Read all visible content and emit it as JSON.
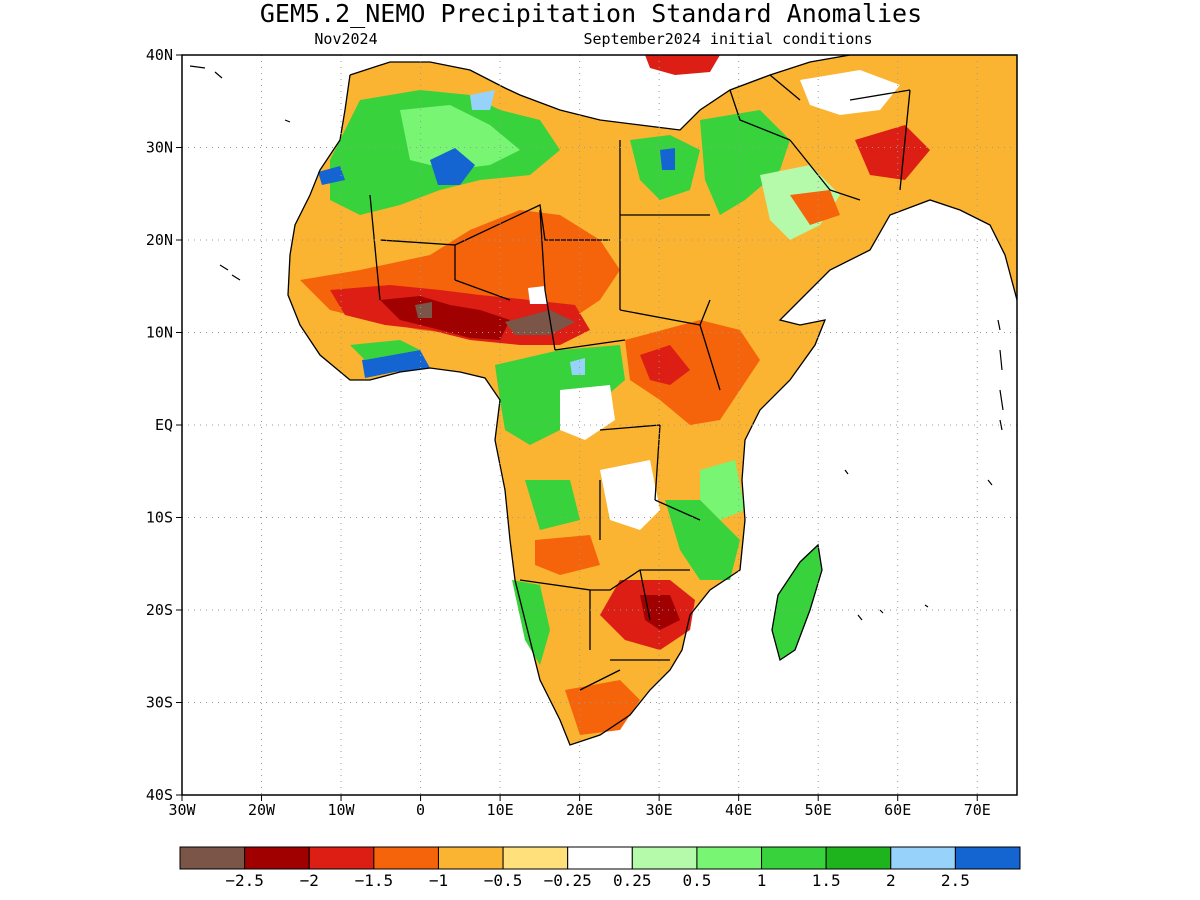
{
  "title": "GEM5.2_NEMO Precipitation Standard Anomalies",
  "subtitle_left": "Nov2024",
  "subtitle_right": "September2024 initial conditions",
  "map": {
    "lon_range": [
      -30,
      75
    ],
    "lat_range": [
      -40,
      40
    ],
    "lat_ticks": [
      {
        "value": 40,
        "label": "40N"
      },
      {
        "value": 30,
        "label": "30N"
      },
      {
        "value": 20,
        "label": "20N"
      },
      {
        "value": 10,
        "label": "10N"
      },
      {
        "value": 0,
        "label": "EQ"
      },
      {
        "value": -10,
        "label": "10S"
      },
      {
        "value": -20,
        "label": "20S"
      },
      {
        "value": -30,
        "label": "30S"
      },
      {
        "value": -40,
        "label": "40S"
      }
    ],
    "lon_ticks": [
      {
        "value": -30,
        "label": "30W"
      },
      {
        "value": -20,
        "label": "20W"
      },
      {
        "value": -10,
        "label": "10W"
      },
      {
        "value": 0,
        "label": "0"
      },
      {
        "value": 10,
        "label": "10E"
      },
      {
        "value": 20,
        "label": "20E"
      },
      {
        "value": 30,
        "label": "30E"
      },
      {
        "value": 40,
        "label": "40E"
      },
      {
        "value": 50,
        "label": "50E"
      },
      {
        "value": 60,
        "label": "60E"
      },
      {
        "value": 70,
        "label": "70E"
      }
    ],
    "grid": true
  },
  "colorbar": {
    "colors": [
      "#7a5548",
      "#a00000",
      "#dc1e14",
      "#f5640a",
      "#fab432",
      "#ffe07a",
      "#ffffff",
      "#b4faaa",
      "#78f573",
      "#37d23c",
      "#1eb41e",
      "#96d2fa",
      "#1464d2"
    ],
    "labels": [
      "−2.5",
      "−2",
      "−1.5",
      "−1",
      "−0.5",
      "−0.25",
      "0.25",
      "0.5",
      "1",
      "1.5",
      "2",
      "2.5"
    ]
  }
}
